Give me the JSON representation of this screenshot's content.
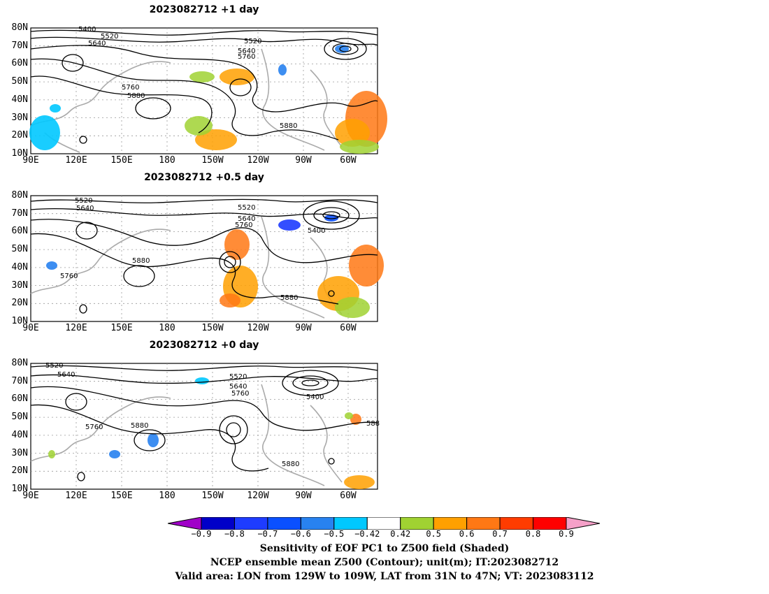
{
  "panels": [
    {
      "title": "2023082712  +1 day"
    },
    {
      "title": "2023082712  +0.5 day"
    },
    {
      "title": "2023082712  +0 day"
    }
  ],
  "map": {
    "lat_labels": [
      "80N",
      "70N",
      "60N",
      "50N",
      "40N",
      "30N",
      "20N",
      "10N"
    ],
    "lon_labels": [
      "90E",
      "120E",
      "150E",
      "180",
      "150W",
      "120W",
      "90W",
      "60W"
    ],
    "lon_range": [
      "90E",
      "50W"
    ],
    "lat_range": [
      "10N",
      "80N"
    ],
    "contour_labels": {
      "p1": [
        "5400",
        "5520",
        "5640",
        "5520",
        "5640",
        "5760",
        "5760",
        "5880",
        "5880"
      ],
      "p2": [
        "5520",
        "5640",
        "5520",
        "5640",
        "5760",
        "5400",
        "5760",
        "5880",
        "5880"
      ],
      "p3": [
        "5520",
        "5640",
        "5520",
        "5640",
        "5760",
        "5400",
        "5760",
        "5880",
        "5880",
        "588"
      ]
    }
  },
  "colorbar": {
    "ticks": [
      "−0.9",
      "−0.8",
      "−0.7",
      "−0.6",
      "−0.5",
      "−0.42",
      "0.42",
      "0.5",
      "0.6",
      "0.7",
      "0.8",
      "0.9"
    ],
    "colors": [
      "#a000c8",
      "#0000c8",
      "#1e3cff",
      "#0a50ff",
      "#2882f0",
      "#00c8ff",
      "#ffffff",
      "#a0d232",
      "#ffa000",
      "#ff7814",
      "#ff3c00",
      "#ff0000",
      "#f5a0c8"
    ]
  },
  "captions": {
    "line1": "Sensitivity of EOF PC1 to Z500 field (Shaded)",
    "line2": "NCEP ensemble mean Z500 (Contour); unit(m); IT:2023082712",
    "line3": "Valid area: LON from 129W to 109W, LAT from 31N to 47N; VT: 2023083112"
  }
}
